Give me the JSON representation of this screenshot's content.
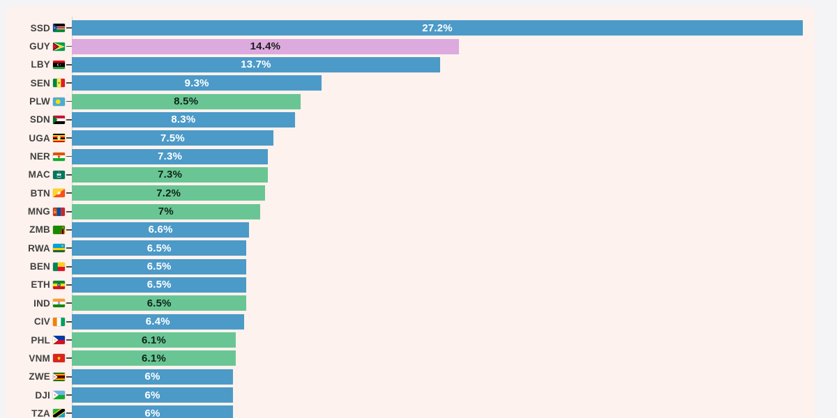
{
  "page": {
    "background": "#f4f4f6",
    "card_background": "#fdf2ed"
  },
  "colors": {
    "blue": "#4c9ac8",
    "green": "#69c694",
    "pink": "#dcaade"
  },
  "value_text_colors": {
    "blue": "#ffffff",
    "green": "#112318",
    "pink": "#1d1d1d"
  },
  "chart_data": {
    "type": "bar",
    "orientation": "horizontal",
    "grid": false,
    "legend": false,
    "title": "",
    "xlabel": "",
    "ylabel": "",
    "xmax": 27.2,
    "categories": [
      "SSD",
      "GUY",
      "LBY",
      "SEN",
      "PLW",
      "SDN",
      "UGA",
      "NER",
      "MAC",
      "BTN",
      "MNG",
      "ZMB",
      "RWA",
      "BEN",
      "ETH",
      "IND",
      "CIV",
      "PHL",
      "VNM",
      "ZWE",
      "DJI",
      "TZA"
    ],
    "values": [
      27.2,
      14.4,
      13.7,
      9.3,
      8.5,
      8.3,
      7.5,
      7.3,
      7.3,
      7.2,
      7.0,
      6.6,
      6.5,
      6.5,
      6.5,
      6.5,
      6.4,
      6.1,
      6.1,
      6.0,
      6.0,
      6.0
    ],
    "rows": [
      {
        "code": "SSD",
        "flag_icon": "flag-ssd",
        "value": 27.2,
        "label": "27.2%",
        "color": "blue"
      },
      {
        "code": "GUY",
        "flag_icon": "flag-guy",
        "value": 14.4,
        "label": "14.4%",
        "color": "pink"
      },
      {
        "code": "LBY",
        "flag_icon": "flag-lby",
        "value": 13.7,
        "label": "13.7%",
        "color": "blue"
      },
      {
        "code": "SEN",
        "flag_icon": "flag-sen",
        "value": 9.3,
        "label": "9.3%",
        "color": "blue"
      },
      {
        "code": "PLW",
        "flag_icon": "flag-plw",
        "value": 8.5,
        "label": "8.5%",
        "color": "green"
      },
      {
        "code": "SDN",
        "flag_icon": "flag-sdn",
        "value": 8.3,
        "label": "8.3%",
        "color": "blue"
      },
      {
        "code": "UGA",
        "flag_icon": "flag-uga",
        "value": 7.5,
        "label": "7.5%",
        "color": "blue"
      },
      {
        "code": "NER",
        "flag_icon": "flag-ner",
        "value": 7.3,
        "label": "7.3%",
        "color": "blue"
      },
      {
        "code": "MAC",
        "flag_icon": "flag-mac",
        "value": 7.3,
        "label": "7.3%",
        "color": "green"
      },
      {
        "code": "BTN",
        "flag_icon": "flag-btn",
        "value": 7.2,
        "label": "7.2%",
        "color": "green"
      },
      {
        "code": "MNG",
        "flag_icon": "flag-mng",
        "value": 7.0,
        "label": "7%",
        "color": "green"
      },
      {
        "code": "ZMB",
        "flag_icon": "flag-zmb",
        "value": 6.6,
        "label": "6.6%",
        "color": "blue"
      },
      {
        "code": "RWA",
        "flag_icon": "flag-rwa",
        "value": 6.5,
        "label": "6.5%",
        "color": "blue"
      },
      {
        "code": "BEN",
        "flag_icon": "flag-ben",
        "value": 6.5,
        "label": "6.5%",
        "color": "blue"
      },
      {
        "code": "ETH",
        "flag_icon": "flag-eth",
        "value": 6.5,
        "label": "6.5%",
        "color": "blue"
      },
      {
        "code": "IND",
        "flag_icon": "flag-ind",
        "value": 6.5,
        "label": "6.5%",
        "color": "green"
      },
      {
        "code": "CIV",
        "flag_icon": "flag-civ",
        "value": 6.4,
        "label": "6.4%",
        "color": "blue"
      },
      {
        "code": "PHL",
        "flag_icon": "flag-phl",
        "value": 6.1,
        "label": "6.1%",
        "color": "green"
      },
      {
        "code": "VNM",
        "flag_icon": "flag-vnm",
        "value": 6.1,
        "label": "6.1%",
        "color": "green"
      },
      {
        "code": "ZWE",
        "flag_icon": "flag-zwe",
        "value": 6.0,
        "label": "6%",
        "color": "blue"
      },
      {
        "code": "DJI",
        "flag_icon": "flag-dji",
        "value": 6.0,
        "label": "6%",
        "color": "blue"
      },
      {
        "code": "TZA",
        "flag_icon": "flag-tza",
        "value": 6.0,
        "label": "6%",
        "color": "blue"
      }
    ]
  }
}
